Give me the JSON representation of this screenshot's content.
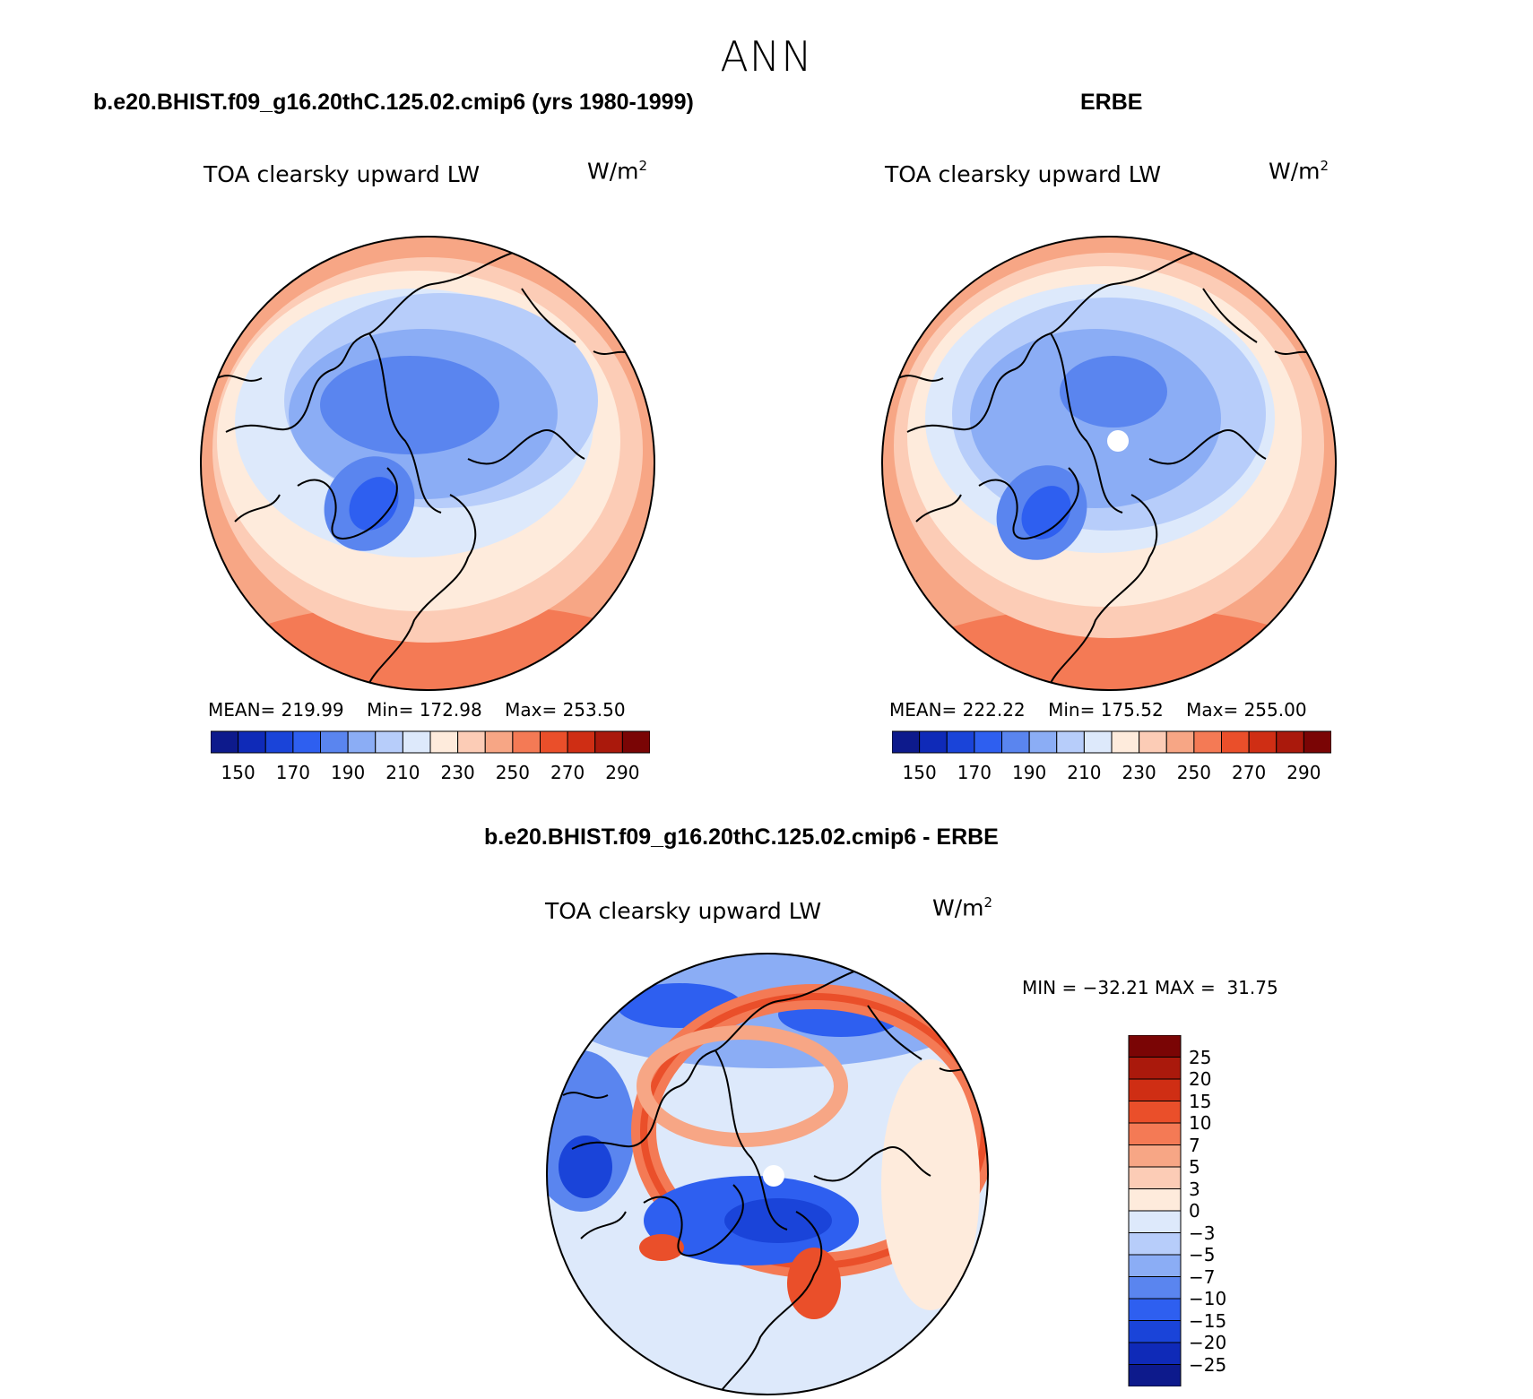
{
  "title": "ANN",
  "variable": "TOA clearsky upward LW",
  "units_base": "W/m",
  "units_exp": "2",
  "panels": [
    {
      "case_title": "b.e20.BHIST.f09_g16.20thC.125.02.cmip6 (yrs 1980-1999)",
      "mean_label": "MEAN=",
      "mean": "219.99",
      "min_label": "Min=",
      "min": "172.98",
      "max_label": "Max=",
      "max": "253.50"
    },
    {
      "case_title": "ERBE",
      "mean_label": "MEAN=",
      "mean": "222.22",
      "min_label": "Min=",
      "min": "175.52",
      "max_label": "Max=",
      "max": "255.00"
    }
  ],
  "diff": {
    "case_title": "b.e20.BHIST.f09_g16.20thC.125.02.cmip6 - ERBE",
    "min_label": "MIN =",
    "min": "−32.21",
    "max_label": "MAX =",
    "max": "31.75"
  },
  "abs_colorbar": {
    "colors": [
      "#0d1a8c",
      "#0f2ab8",
      "#1a44d9",
      "#2e5ff0",
      "#5a85ef",
      "#8badf5",
      "#b7cdfa",
      "#dde9fb",
      "#feebdc",
      "#fcccb6",
      "#f7a685",
      "#f47a55",
      "#ea4f2a",
      "#cf2e14",
      "#aa190c",
      "#7a0505"
    ],
    "ticks": [
      "150",
      "170",
      "190",
      "210",
      "230",
      "250",
      "270",
      "290"
    ]
  },
  "diff_colorbar": {
    "colors": [
      "#0d1a8c",
      "#0f2ab8",
      "#1a44d9",
      "#2e5ff0",
      "#5a85ef",
      "#8badf5",
      "#b7cdfa",
      "#dde9fb",
      "#feebdc",
      "#fcccb6",
      "#f7a685",
      "#f47a55",
      "#ea4f2a",
      "#cf2e14",
      "#aa190c",
      "#7a0505"
    ],
    "labels_top_to_bottom": [
      "25",
      "20",
      "15",
      "10",
      "7",
      "5",
      "3",
      "0",
      "−3",
      "−5",
      "−7",
      "−10",
      "−15",
      "−20",
      "−25"
    ]
  },
  "map_colors": {
    "warm_outer": "#f7a685",
    "warm_mid": "#fcccb6",
    "warm_light": "#feebdc",
    "cold_light": "#dde9fb",
    "cold_mid": "#b7cdfa",
    "cold": "#8badf5",
    "cold_deep": "#5a85ef",
    "cold_deeper": "#2e5ff0",
    "hot": "#ea4f2a",
    "coast": "#000000"
  }
}
